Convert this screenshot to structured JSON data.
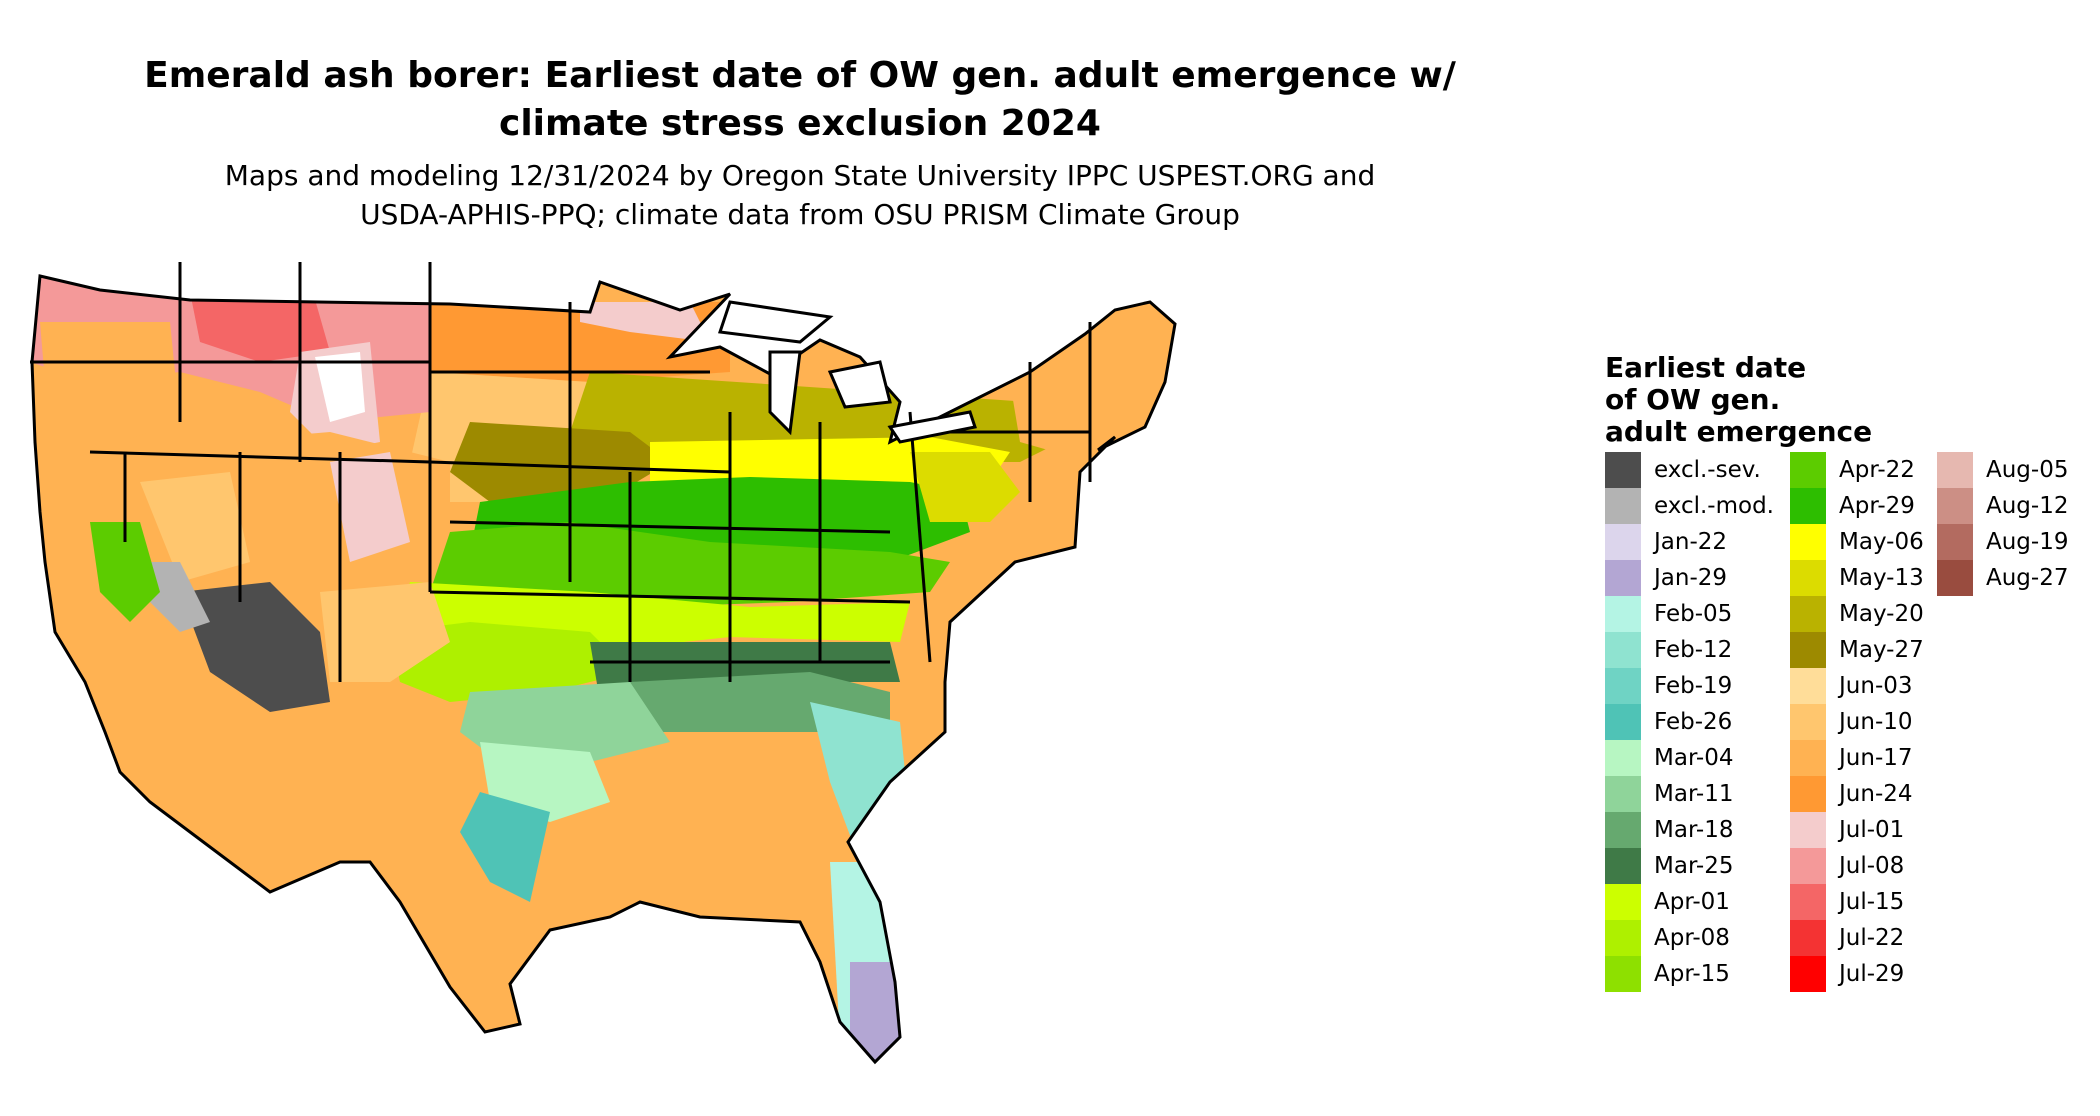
{
  "title": {
    "line1": "Emerald ash borer: Earliest date of OW gen. adult emergence w/",
    "line2": "climate stress exclusion 2024"
  },
  "subtitle": {
    "line1": "Maps and modeling 12/31/2024 by Oregon State University IPPC USPEST.ORG and",
    "line2": "USDA-APHIS-PPQ; climate data from OSU PRISM Climate Group"
  },
  "legend": {
    "title": [
      "Earliest date",
      "of OW gen.",
      "adult emergence"
    ],
    "columns": [
      [
        {
          "label": "excl.-sev.",
          "color": "#4d4d4d"
        },
        {
          "label": "excl.-mod.",
          "color": "#b3b3b3"
        },
        {
          "label": "Jan-22",
          "color": "#dcd5ec"
        },
        {
          "label": "Jan-29",
          "color": "#b3a6d3"
        },
        {
          "label": "Feb-05",
          "color": "#b4f4e4"
        },
        {
          "label": "Feb-12",
          "color": "#8fe3d0"
        },
        {
          "label": "Feb-19",
          "color": "#6fd3c4"
        },
        {
          "label": "Feb-26",
          "color": "#4fc3b6"
        },
        {
          "label": "Mar-04",
          "color": "#b7f6c2"
        },
        {
          "label": "Mar-11",
          "color": "#8fd49a"
        },
        {
          "label": "Mar-18",
          "color": "#66a96f"
        },
        {
          "label": "Mar-25",
          "color": "#3f7a47"
        },
        {
          "label": "Apr-01",
          "color": "#ccff00"
        },
        {
          "label": "Apr-08",
          "color": "#aef000"
        },
        {
          "label": "Apr-15",
          "color": "#8ee000"
        }
      ],
      [
        {
          "label": "Apr-22",
          "color": "#5ccc00"
        },
        {
          "label": "Apr-29",
          "color": "#2dbe00"
        },
        {
          "label": "May-06",
          "color": "#ffff00"
        },
        {
          "label": "May-13",
          "color": "#dcdc00"
        },
        {
          "label": "May-20",
          "color": "#bab200"
        },
        {
          "label": "May-27",
          "color": "#9d8a00"
        },
        {
          "label": "Jun-03",
          "color": "#ffdd99"
        },
        {
          "label": "Jun-10",
          "color": "#ffc66e"
        },
        {
          "label": "Jun-17",
          "color": "#ffb252"
        },
        {
          "label": "Jun-24",
          "color": "#ff9933"
        },
        {
          "label": "Jul-01",
          "color": "#f4cccc"
        },
        {
          "label": "Jul-08",
          "color": "#f49999"
        },
        {
          "label": "Jul-15",
          "color": "#f46666"
        },
        {
          "label": "Jul-22",
          "color": "#f43333"
        },
        {
          "label": "Jul-29",
          "color": "#ff0000"
        }
      ],
      [
        {
          "label": "Aug-05",
          "color": "#e6b8b0"
        },
        {
          "label": "Aug-12",
          "color": "#cc8f85"
        },
        {
          "label": "Aug-19",
          "color": "#b36b60"
        },
        {
          "label": "Aug-27",
          "color": "#994c3f"
        }
      ]
    ]
  }
}
